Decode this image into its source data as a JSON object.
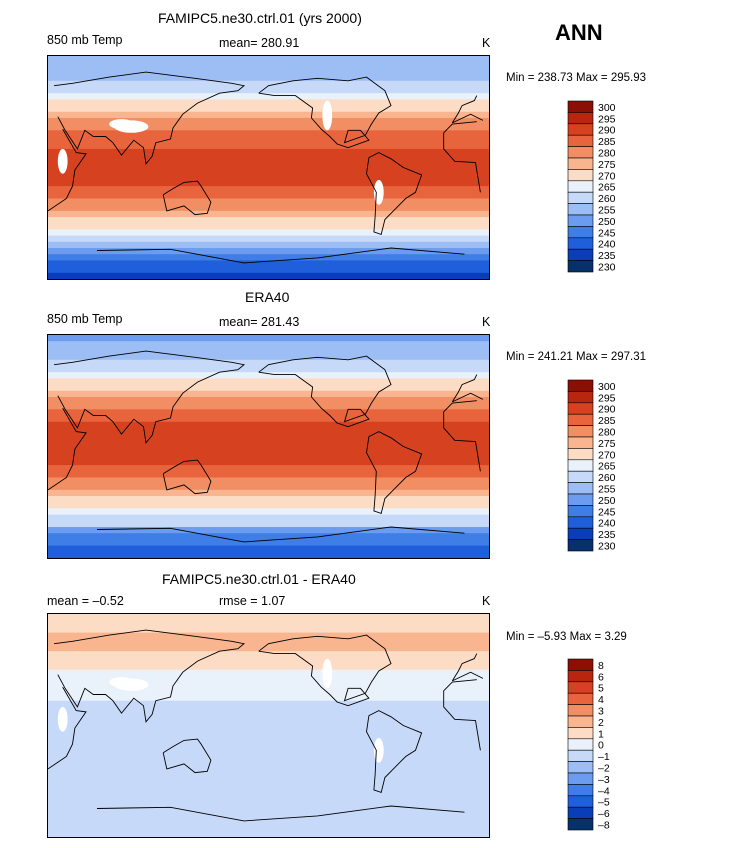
{
  "season": "ANN",
  "colors": {
    "full": [
      "#08306b",
      "#0a3db8",
      "#1f5fdb",
      "#3f7ee6",
      "#6b9cef",
      "#9dbdf5",
      "#c6d9f8",
      "#e9f1fb",
      "#fddcc6",
      "#f9b58f",
      "#f28e63",
      "#e8643c",
      "#d64220",
      "#b82610",
      "#8b0f05"
    ],
    "diff": [
      "#08306b",
      "#0a3db8",
      "#1f5fdb",
      "#3f7ee6",
      "#6b9cef",
      "#9dbdf5",
      "#c6d9f8",
      "#e9f1fb",
      "#fddcc6",
      "#f9b58f",
      "#f28e63",
      "#e8643c",
      "#d64220",
      "#b82610",
      "#8b0f05"
    ]
  },
  "chart_data": [
    {
      "type": "heatmap",
      "title": "FAMIPC5.ne30.ctrl.01 (yrs 2000)",
      "variable": "850 mb Temp",
      "mean_label": "mean= 280.91",
      "units": "K",
      "range_label": "Min = 238.73 Max = 295.93",
      "colorbar_levels": [
        "300",
        "295",
        "290",
        "285",
        "280",
        "275",
        "270",
        "265",
        "260",
        "255",
        "250",
        "245",
        "240",
        "235",
        "230"
      ],
      "zonal_profile": {
        "lat": [
          -90,
          -75,
          -60,
          -45,
          -30,
          -15,
          0,
          15,
          30,
          45,
          60,
          75,
          90
        ],
        "value": [
          239,
          244,
          262,
          272,
          282,
          290,
          292,
          290,
          284,
          276,
          266,
          258,
          256
        ]
      },
      "missing": true
    },
    {
      "type": "heatmap",
      "title": "ERA40",
      "variable": "850 mb Temp",
      "mean_label": "mean= 281.43",
      "units": "K",
      "range_label": "Min = 241.21 Max = 297.31",
      "colorbar_levels": [
        "300",
        "295",
        "290",
        "285",
        "280",
        "275",
        "270",
        "265",
        "260",
        "255",
        "250",
        "245",
        "240",
        "235",
        "230"
      ],
      "zonal_profile": {
        "lat": [
          -90,
          -75,
          -60,
          -45,
          -30,
          -15,
          0,
          15,
          30,
          45,
          60,
          75,
          90
        ],
        "value": [
          241,
          246,
          263,
          272,
          282,
          290,
          293,
          291,
          285,
          276,
          265,
          256,
          254
        ]
      },
      "missing": false
    },
    {
      "type": "heatmap",
      "title": "FAMIPC5.ne30.ctrl.01 - ERA40",
      "mean_label": "mean = –0.52",
      "rmse_label": "rmse = 1.07",
      "units": "K",
      "range_label": "Min = –5.93 Max = 3.29",
      "colorbar_levels": [
        "8",
        "6",
        "5",
        "4",
        "3",
        "2",
        "1",
        "0",
        "–1",
        "–2",
        "–3",
        "–4",
        "–5",
        "–6",
        "–8"
      ],
      "zonal_profile": {
        "lat": [
          -90,
          -75,
          -60,
          -45,
          -30,
          -15,
          0,
          15,
          30,
          45,
          60,
          75,
          90
        ],
        "value": [
          -1,
          -1,
          -0.5,
          -1,
          -1,
          -1,
          -1,
          -0.5,
          0.5,
          1,
          2,
          2,
          1
        ]
      },
      "missing": true
    }
  ]
}
